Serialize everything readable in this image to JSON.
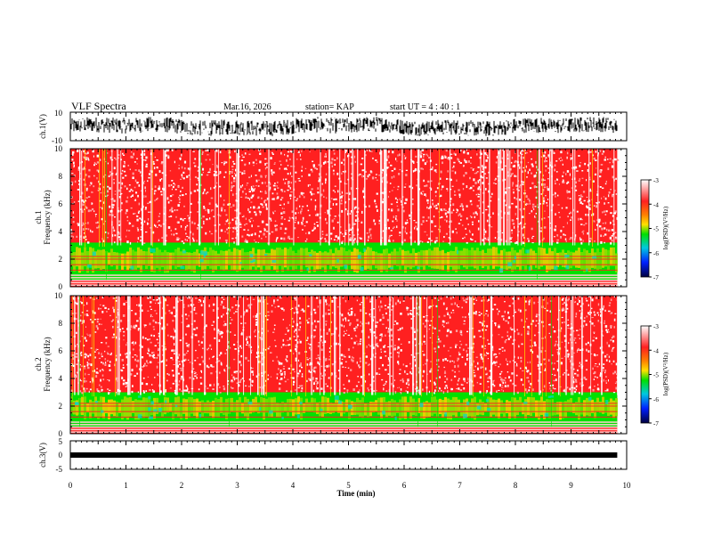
{
  "header": {
    "title": "VLF Spectra",
    "date": "Mar.16, 2026",
    "station": "station= KAP",
    "start": "start  UT =   4 : 40 : 1"
  },
  "colors": {
    "low": "#000080",
    "mid": "#00e000",
    "high": "#ff2020",
    "band": "#ffd000",
    "trace": "#000000"
  },
  "chart_data": [
    {
      "type": "line",
      "name": "ch1-waveform",
      "ylabel": "ch.1(V)",
      "ylim": [
        -10,
        10
      ],
      "yticks": [
        "10",
        "-10"
      ],
      "x_range_min": [
        0,
        9.83
      ]
    },
    {
      "type": "heatmap",
      "name": "ch1-spectrogram",
      "ylabel_line1": "ch.1",
      "ylabel_line2": "Frequency  (kHz)",
      "ylim": [
        0,
        10
      ],
      "yticks": [
        "0",
        "2",
        "4",
        "6",
        "8",
        "10"
      ],
      "colorbar": {
        "label": "log(PSD)(V²/Hz)",
        "range": [
          -7,
          -3
        ],
        "ticks": [
          "-3",
          "-4",
          "-5",
          "-6",
          "-7"
        ]
      }
    },
    {
      "type": "heatmap",
      "name": "ch2-spectrogram",
      "ylabel_line1": "ch.2",
      "ylabel_line2": "Frequency  (kHz)",
      "ylim": [
        0,
        10
      ],
      "yticks": [
        "0",
        "2",
        "4",
        "6",
        "8",
        "10"
      ],
      "colorbar": {
        "label": "log(PSD)(V²/Hz)",
        "range": [
          -7,
          -3
        ],
        "ticks": [
          "-3",
          "-4",
          "-5",
          "-6",
          "-7"
        ]
      }
    },
    {
      "type": "line",
      "name": "ch3-waveform",
      "ylabel": "ch.3(V)",
      "ylim": [
        -5,
        5
      ],
      "yticks": [
        "5",
        "0",
        "-5"
      ],
      "trace_level": 0,
      "x_range_min": [
        0,
        9.83
      ]
    }
  ],
  "x_axis": {
    "label": "Time  (min)",
    "range": [
      0,
      10
    ],
    "ticks": [
      "0",
      "1",
      "2",
      "3",
      "4",
      "5",
      "6",
      "7",
      "8",
      "9",
      "10"
    ]
  }
}
